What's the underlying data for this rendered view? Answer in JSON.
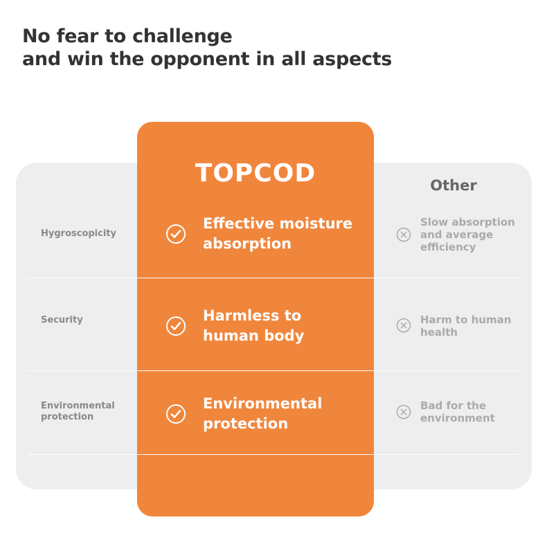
{
  "heading": {
    "line1": "No fear to challenge",
    "line2": "and win the opponent in all aspects"
  },
  "columns": {
    "brand": "TOPCOD",
    "other": "Other"
  },
  "rows": [
    {
      "label": "Hygroscopicity",
      "brand_text": "Effective moisture absorption",
      "other_text": "Slow absorption and average efficiency"
    },
    {
      "label": "Security",
      "brand_text": "Harmless to human body",
      "other_text": "Harm to human health"
    },
    {
      "label": "Environmental protection",
      "brand_text": "Environmental protection",
      "other_text": "Bad for the environment"
    }
  ],
  "colors": {
    "accent": "#f0863c",
    "panel": "#eeeeee"
  },
  "icons": {
    "brand": "check-circle-icon",
    "other": "x-circle-icon"
  }
}
